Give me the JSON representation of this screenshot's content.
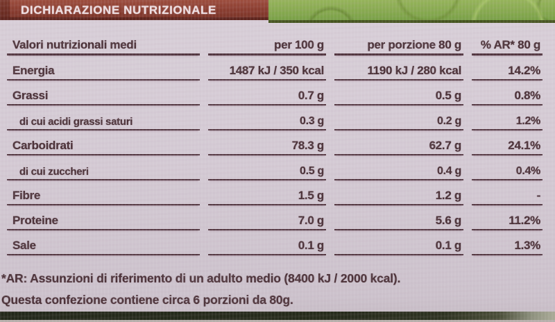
{
  "banner": {
    "title": "DICHIARAZIONE NUTRIZIONALE"
  },
  "table": {
    "header": {
      "label": "Valori nutrizionali medi",
      "per100": "per 100 g",
      "porzione": "per porzione 80 g",
      "ar": "% AR* 80 g"
    },
    "rows": [
      {
        "label": "Energia",
        "per100": "1487 kJ / 350 kcal",
        "porzione": "1190 kJ / 280 kcal",
        "ar": "14.2%"
      },
      {
        "label": "Grassi",
        "per100": "0.7 g",
        "porzione": "0.5 g",
        "ar": "0.8%"
      },
      {
        "label": "di cui acidi grassi saturi",
        "per100": "0.3 g",
        "porzione": "0.2 g",
        "ar": "1.2%"
      },
      {
        "label": "Carboidrati",
        "per100": "78.3 g",
        "porzione": "62.7 g",
        "ar": "24.1%"
      },
      {
        "label": "di cui zuccheri",
        "per100": "0.5 g",
        "porzione": "0.4 g",
        "ar": "0.4%"
      },
      {
        "label": "Fibre",
        "per100": "1.5 g",
        "porzione": "1.2 g",
        "ar": "-"
      },
      {
        "label": "Proteine",
        "per100": "7.0 g",
        "porzione": "5.6 g",
        "ar": "11.2%"
      },
      {
        "label": "Sale",
        "per100": "0.1 g",
        "porzione": "0.1 g",
        "ar": "1.3%"
      }
    ]
  },
  "footnotes": {
    "line1": "*AR: Assunzioni di riferimento di un adulto medio (8400 kJ / 2000 kcal).",
    "line2": "Questa confezione contiene circa 6 porzioni da 80g."
  },
  "colors": {
    "banner_red": "#8a3d30",
    "package_green": "#85a84e",
    "label_background": "#d4cad4",
    "text_maroon": "#4b3138",
    "bottom_band": "#262b1b"
  }
}
